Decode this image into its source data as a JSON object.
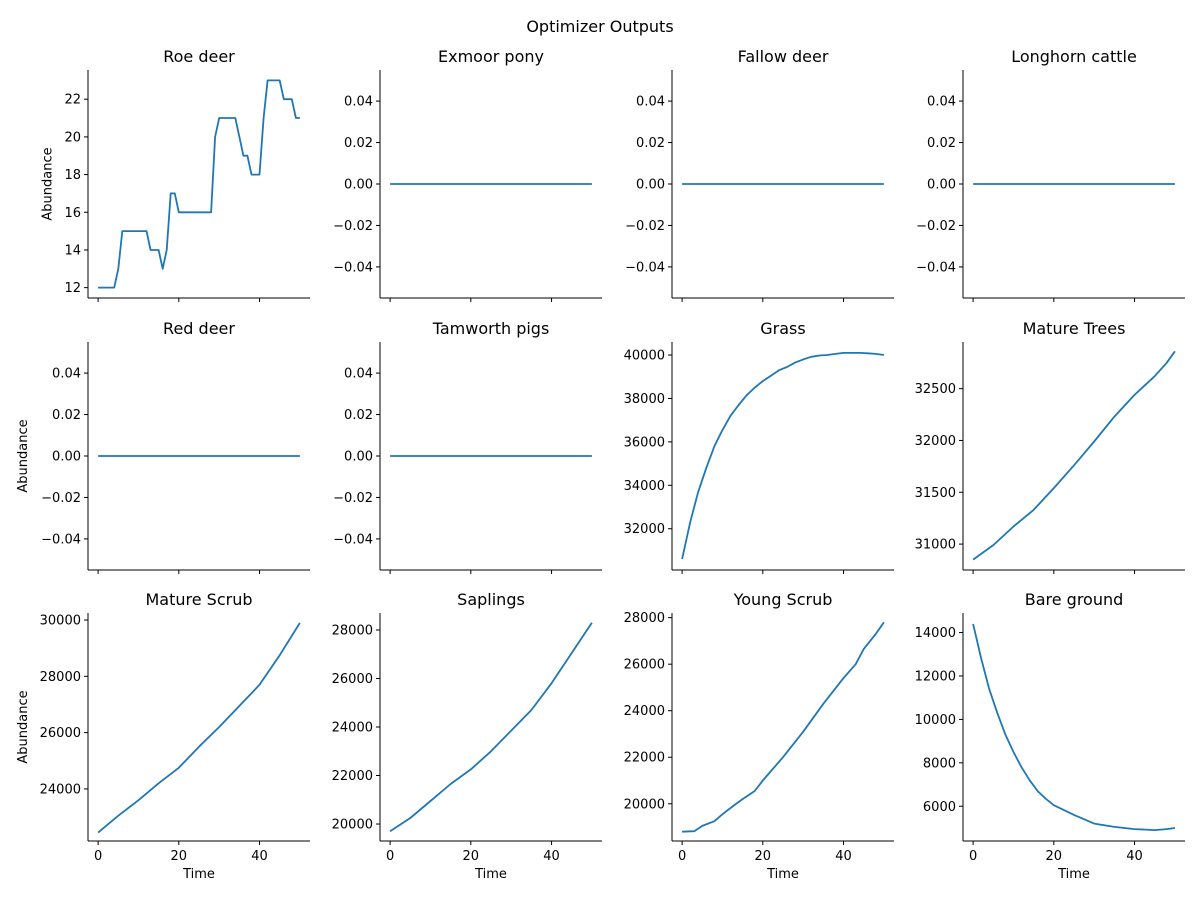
{
  "figure": {
    "title": "Optimizer Outputs"
  },
  "chart_data": {
    "type": "line",
    "title": "Optimizer Outputs",
    "series_color": "#1f77b4",
    "grid": false,
    "layout": "3 rows x 4 columns, shared x axis",
    "panels": [
      {
        "title": "Roe deer",
        "xlabel": "",
        "ylabel": "Abundance",
        "xlim": [
          -2.5,
          52.5
        ],
        "ylim": [
          11.45,
          23.55
        ],
        "xticks": [
          0,
          20,
          40
        ],
        "show_xtick_labels": false,
        "yticks": [
          12,
          14,
          16,
          18,
          20,
          22
        ],
        "ytick_labels": [
          "12",
          "14",
          "16",
          "18",
          "20",
          "22"
        ],
        "x": [
          0,
          1,
          2,
          3,
          4,
          5,
          6,
          7,
          8,
          9,
          10,
          11,
          12,
          13,
          14,
          15,
          16,
          17,
          18,
          19,
          20,
          21,
          22,
          23,
          24,
          25,
          26,
          27,
          28,
          29,
          30,
          31,
          32,
          33,
          34,
          35,
          36,
          37,
          38,
          39,
          40,
          41,
          42,
          43,
          44,
          45,
          46,
          47,
          48,
          49,
          50
        ],
        "y": [
          12,
          12,
          12,
          12,
          12,
          13,
          15,
          15,
          15,
          15,
          15,
          15,
          15,
          14,
          14,
          14,
          13,
          14,
          17,
          17,
          16,
          16,
          16,
          16,
          16,
          16,
          16,
          16,
          16,
          20,
          21,
          21,
          21,
          21,
          21,
          20,
          19,
          19,
          18,
          18,
          18,
          21,
          23,
          23,
          23,
          23,
          22,
          22,
          22,
          21,
          21
        ]
      },
      {
        "title": "Exmoor pony",
        "xlabel": "",
        "ylabel": "",
        "xlim": [
          -2.5,
          52.5
        ],
        "ylim": [
          -0.055,
          0.055
        ],
        "xticks": [
          0,
          20,
          40
        ],
        "show_xtick_labels": false,
        "yticks": [
          -0.04,
          -0.02,
          0,
          0.02,
          0.04
        ],
        "ytick_labels": [
          "−0.04",
          "−0.02",
          "0.00",
          "0.02",
          "0.04"
        ],
        "x": [
          0,
          50
        ],
        "y": [
          0,
          0
        ]
      },
      {
        "title": "Fallow deer",
        "xlabel": "",
        "ylabel": "",
        "xlim": [
          -2.5,
          52.5
        ],
        "ylim": [
          -0.055,
          0.055
        ],
        "xticks": [
          0,
          20,
          40
        ],
        "show_xtick_labels": false,
        "yticks": [
          -0.04,
          -0.02,
          0,
          0.02,
          0.04
        ],
        "ytick_labels": [
          "−0.04",
          "−0.02",
          "0.00",
          "0.02",
          "0.04"
        ],
        "x": [
          0,
          50
        ],
        "y": [
          0,
          0
        ]
      },
      {
        "title": "Longhorn cattle",
        "xlabel": "",
        "ylabel": "",
        "xlim": [
          -2.5,
          52.5
        ],
        "ylim": [
          -0.055,
          0.055
        ],
        "xticks": [
          0,
          20,
          40
        ],
        "show_xtick_labels": false,
        "yticks": [
          -0.04,
          -0.02,
          0,
          0.02,
          0.04
        ],
        "ytick_labels": [
          "−0.04",
          "−0.02",
          "0.00",
          "0.02",
          "0.04"
        ],
        "x": [
          0,
          50
        ],
        "y": [
          0,
          0
        ]
      },
      {
        "title": "Red deer",
        "xlabel": "",
        "ylabel": "Abundance",
        "xlim": [
          -2.5,
          52.5
        ],
        "ylim": [
          -0.055,
          0.055
        ],
        "xticks": [
          0,
          20,
          40
        ],
        "show_xtick_labels": false,
        "yticks": [
          -0.04,
          -0.02,
          0,
          0.02,
          0.04
        ],
        "ytick_labels": [
          "−0.04",
          "−0.02",
          "0.00",
          "0.02",
          "0.04"
        ],
        "x": [
          0,
          50
        ],
        "y": [
          0,
          0
        ]
      },
      {
        "title": "Tamworth pigs",
        "xlabel": "",
        "ylabel": "",
        "xlim": [
          -2.5,
          52.5
        ],
        "ylim": [
          -0.055,
          0.055
        ],
        "xticks": [
          0,
          20,
          40
        ],
        "show_xtick_labels": false,
        "yticks": [
          -0.04,
          -0.02,
          0,
          0.02,
          0.04
        ],
        "ytick_labels": [
          "−0.04",
          "−0.02",
          "0.00",
          "0.02",
          "0.04"
        ],
        "x": [
          0,
          50
        ],
        "y": [
          0,
          0
        ]
      },
      {
        "title": "Grass",
        "xlabel": "",
        "ylabel": "",
        "xlim": [
          -2.5,
          52.5
        ],
        "ylim": [
          30100,
          40600
        ],
        "xticks": [
          0,
          20,
          40
        ],
        "show_xtick_labels": false,
        "yticks": [
          32000,
          34000,
          36000,
          38000,
          40000
        ],
        "ytick_labels": [
          "32000",
          "34000",
          "36000",
          "38000",
          "40000"
        ],
        "x": [
          0,
          2,
          4,
          6,
          8,
          10,
          12,
          14,
          16,
          18,
          20,
          22,
          24,
          26,
          28,
          30,
          32,
          34,
          36,
          38,
          40,
          42,
          44,
          46,
          48,
          50
        ],
        "y": [
          30600,
          32300,
          33700,
          34800,
          35800,
          36550,
          37200,
          37700,
          38150,
          38500,
          38800,
          39050,
          39300,
          39450,
          39650,
          39800,
          39920,
          39980,
          40000,
          40050,
          40100,
          40100,
          40100,
          40080,
          40050,
          40000
        ]
      },
      {
        "title": "Mature Trees",
        "xlabel": "",
        "ylabel": "",
        "xlim": [
          -2.5,
          52.5
        ],
        "ylim": [
          30750,
          32950
        ],
        "xticks": [
          0,
          20,
          40
        ],
        "show_xtick_labels": false,
        "yticks": [
          31000,
          31500,
          32000,
          32500
        ],
        "ytick_labels": [
          "31000",
          "31500",
          "32000",
          "32500"
        ],
        "x": [
          0,
          5,
          10,
          15,
          20,
          25,
          30,
          35,
          40,
          45,
          48,
          50
        ],
        "y": [
          30850,
          30990,
          31170,
          31330,
          31540,
          31760,
          31990,
          32230,
          32440,
          32620,
          32750,
          32860
        ]
      },
      {
        "title": "Mature Scrub",
        "xlabel": "Time",
        "ylabel": "Abundance",
        "xlim": [
          -2.5,
          52.5
        ],
        "ylim": [
          22150,
          30250
        ],
        "xticks": [
          0,
          20,
          40
        ],
        "show_xtick_labels": true,
        "xtick_labels": [
          "0",
          "20",
          "40"
        ],
        "yticks": [
          24000,
          26000,
          28000,
          30000
        ],
        "ytick_labels": [
          "24000",
          "26000",
          "28000",
          "30000"
        ],
        "x": [
          0,
          5,
          10,
          15,
          20,
          25,
          30,
          35,
          40,
          45,
          50
        ],
        "y": [
          22450,
          23050,
          23600,
          24200,
          24750,
          25500,
          26200,
          26950,
          27700,
          28750,
          29900
        ]
      },
      {
        "title": "Saplings",
        "xlabel": "Time",
        "ylabel": "",
        "xlim": [
          -2.5,
          52.5
        ],
        "ylim": [
          19300,
          28700
        ],
        "xticks": [
          0,
          20,
          40
        ],
        "show_xtick_labels": true,
        "xtick_labels": [
          "0",
          "20",
          "40"
        ],
        "yticks": [
          20000,
          22000,
          24000,
          26000,
          28000
        ],
        "ytick_labels": [
          "20000",
          "22000",
          "24000",
          "26000",
          "28000"
        ],
        "x": [
          0,
          5,
          10,
          15,
          20,
          25,
          30,
          35,
          40,
          45,
          50
        ],
        "y": [
          19700,
          20250,
          20950,
          21650,
          22250,
          23000,
          23850,
          24700,
          25800,
          27050,
          28300
        ]
      },
      {
        "title": "Young Scrub",
        "xlabel": "Time",
        "ylabel": "",
        "xlim": [
          -2.5,
          52.5
        ],
        "ylim": [
          18400,
          28200
        ],
        "xticks": [
          0,
          20,
          40
        ],
        "show_xtick_labels": true,
        "xtick_labels": [
          "0",
          "20",
          "40"
        ],
        "yticks": [
          20000,
          22000,
          24000,
          26000,
          28000
        ],
        "ytick_labels": [
          "20000",
          "22000",
          "24000",
          "26000",
          "28000"
        ],
        "x": [
          0,
          3,
          5,
          8,
          10,
          13,
          15,
          18,
          20,
          25,
          30,
          35,
          40,
          43,
          45,
          48,
          50
        ],
        "y": [
          18800,
          18820,
          19050,
          19250,
          19550,
          19950,
          20200,
          20550,
          21000,
          22000,
          23100,
          24300,
          25400,
          26000,
          26650,
          27300,
          27800
        ]
      },
      {
        "title": "Bare ground",
        "xlabel": "Time",
        "ylabel": "",
        "xlim": [
          -2.5,
          52.5
        ],
        "ylim": [
          4400,
          14900
        ],
        "xticks": [
          0,
          20,
          40
        ],
        "show_xtick_labels": true,
        "xtick_labels": [
          "0",
          "20",
          "40"
        ],
        "yticks": [
          6000,
          8000,
          10000,
          12000,
          14000
        ],
        "ytick_labels": [
          "6000",
          "8000",
          "10000",
          "12000",
          "14000"
        ],
        "x": [
          0,
          2,
          4,
          6,
          8,
          10,
          12,
          14,
          16,
          18,
          20,
          25,
          30,
          35,
          40,
          45,
          48,
          50
        ],
        "y": [
          14400,
          12800,
          11400,
          10300,
          9300,
          8500,
          7800,
          7200,
          6700,
          6350,
          6050,
          5600,
          5200,
          5050,
          4950,
          4900,
          4950,
          5000
        ]
      }
    ]
  }
}
